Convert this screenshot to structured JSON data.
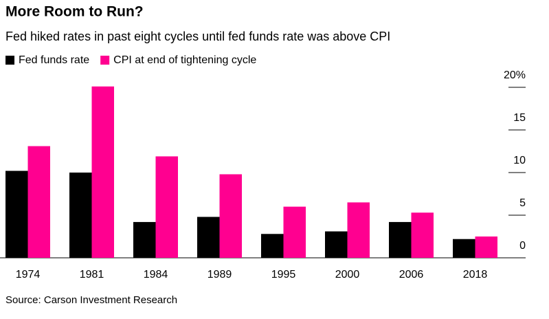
{
  "chart_data": {
    "type": "bar",
    "title": "More Room to Run?",
    "subtitle": "Fed hiked rates in past eight cycles until fed funds rate was above CPI",
    "source": "Source: Carson Investment Research",
    "categories": [
      "1974",
      "1981",
      "1984",
      "1989",
      "1995",
      "2000",
      "2006",
      "2018"
    ],
    "series": [
      {
        "name": "Fed funds rate",
        "color": "#000000",
        "values": [
          10.2,
          10.0,
          4.2,
          4.8,
          2.8,
          3.1,
          4.2,
          2.2
        ]
      },
      {
        "name": "CPI at end of tightening cycle",
        "color": "#ff0090",
        "values": [
          13.1,
          20.1,
          11.9,
          9.8,
          6.0,
          6.5,
          5.3,
          2.5
        ]
      }
    ],
    "ylim": [
      0,
      20
    ],
    "yticks": [
      0,
      5,
      10,
      15,
      {
        "value": 20,
        "label": "20%"
      }
    ]
  }
}
